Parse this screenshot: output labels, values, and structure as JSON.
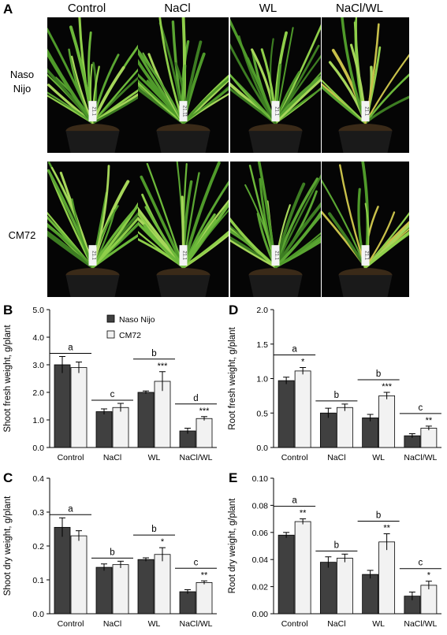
{
  "figure": {
    "panel_a": {
      "letter": "A",
      "columns": [
        "Control",
        "NaCl",
        "WL",
        "NaCl/WL"
      ],
      "rows": [
        {
          "label_line1": "Naso",
          "label_line2": "Nijo",
          "tags": [
            "21.1",
            "21.11",
            "21.1",
            "21.1"
          ]
        },
        {
          "label_line1": "CM72",
          "label_line2": "",
          "tags": [
            "21.1",
            "21.1",
            "21.1",
            "21.1"
          ]
        }
      ]
    }
  },
  "chart_data": [
    {
      "panel": "B",
      "type": "bar",
      "categories": [
        "Control",
        "NaCl",
        "WL",
        "NaCl/WL"
      ],
      "ylabel": "Shoot fresh weight, g/plant",
      "ylim": [
        0,
        5
      ],
      "yticks": [
        "0.0",
        "1.0",
        "2.0",
        "3.0",
        "4.0",
        "5.0"
      ],
      "legend": {
        "placement": "top-center",
        "entries": [
          "Naso Nijo",
          "CM72"
        ]
      },
      "series": [
        {
          "name": "Naso Nijo",
          "color": "#404040",
          "values": [
            3.0,
            1.3,
            2.0,
            0.6
          ],
          "errors": [
            0.3,
            0.1,
            0.05,
            0.1
          ]
        },
        {
          "name": "CM72",
          "color": "#f2f2f2",
          "values": [
            2.9,
            1.45,
            2.4,
            1.05
          ],
          "errors": [
            0.2,
            0.15,
            0.35,
            0.07
          ]
        }
      ],
      "letters": [
        "a",
        "c",
        "b",
        "d"
      ],
      "stars": [
        "",
        "",
        "***",
        "***"
      ]
    },
    {
      "panel": "D",
      "type": "bar",
      "categories": [
        "Control",
        "NaCl",
        "WL",
        "NaCl/WL"
      ],
      "ylabel": "Root fresh weight, g/plant",
      "ylim": [
        0,
        2
      ],
      "yticks": [
        "0.0",
        "0.5",
        "1.0",
        "1.5",
        "2.0"
      ],
      "series": [
        {
          "name": "Naso Nijo",
          "color": "#404040",
          "values": [
            0.97,
            0.5,
            0.43,
            0.17
          ],
          "errors": [
            0.05,
            0.07,
            0.05,
            0.03
          ]
        },
        {
          "name": "CM72",
          "color": "#f2f2f2",
          "values": [
            1.11,
            0.58,
            0.75,
            0.28
          ],
          "errors": [
            0.05,
            0.05,
            0.05,
            0.03
          ]
        }
      ],
      "letters": [
        "a",
        "b",
        "b",
        "c"
      ],
      "stars": [
        "*",
        "",
        "***",
        "**"
      ]
    },
    {
      "panel": "C",
      "type": "bar",
      "categories": [
        "Control",
        "NaCl",
        "WL",
        "NaCl/WL"
      ],
      "ylabel": "Shoot dry weight, g/plant",
      "ylim": [
        0,
        0.4
      ],
      "yticks": [
        "0.0",
        "0.1",
        "0.2",
        "0.3",
        "0.4"
      ],
      "series": [
        {
          "name": "Naso Nijo",
          "color": "#404040",
          "values": [
            0.255,
            0.137,
            0.16,
            0.065
          ],
          "errors": [
            0.028,
            0.01,
            0.005,
            0.006
          ]
        },
        {
          "name": "CM72",
          "color": "#f2f2f2",
          "values": [
            0.23,
            0.145,
            0.175,
            0.092
          ],
          "errors": [
            0.015,
            0.01,
            0.02,
            0.005
          ]
        }
      ],
      "letters": [
        "a",
        "b",
        "b",
        "c"
      ],
      "stars": [
        "",
        "",
        "*",
        "**"
      ]
    },
    {
      "panel": "E",
      "type": "bar",
      "categories": [
        "Control",
        "NaCl",
        "WL",
        "NaCl/WL"
      ],
      "ylabel": "Root dry weight, g/plant",
      "ylim": [
        0,
        0.1
      ],
      "yticks": [
        "0.00",
        "0.02",
        "0.04",
        "0.06",
        "0.08",
        "0.10"
      ],
      "series": [
        {
          "name": "Naso Nijo",
          "color": "#404040",
          "values": [
            0.058,
            0.038,
            0.029,
            0.013
          ],
          "errors": [
            0.002,
            0.004,
            0.003,
            0.003
          ]
        },
        {
          "name": "CM72",
          "color": "#f2f2f2",
          "values": [
            0.068,
            0.041,
            0.053,
            0.021
          ],
          "errors": [
            0.002,
            0.003,
            0.006,
            0.003
          ]
        }
      ],
      "letters": [
        "a",
        "b",
        "b",
        "c"
      ],
      "stars": [
        "**",
        "",
        "**",
        "*"
      ]
    }
  ]
}
